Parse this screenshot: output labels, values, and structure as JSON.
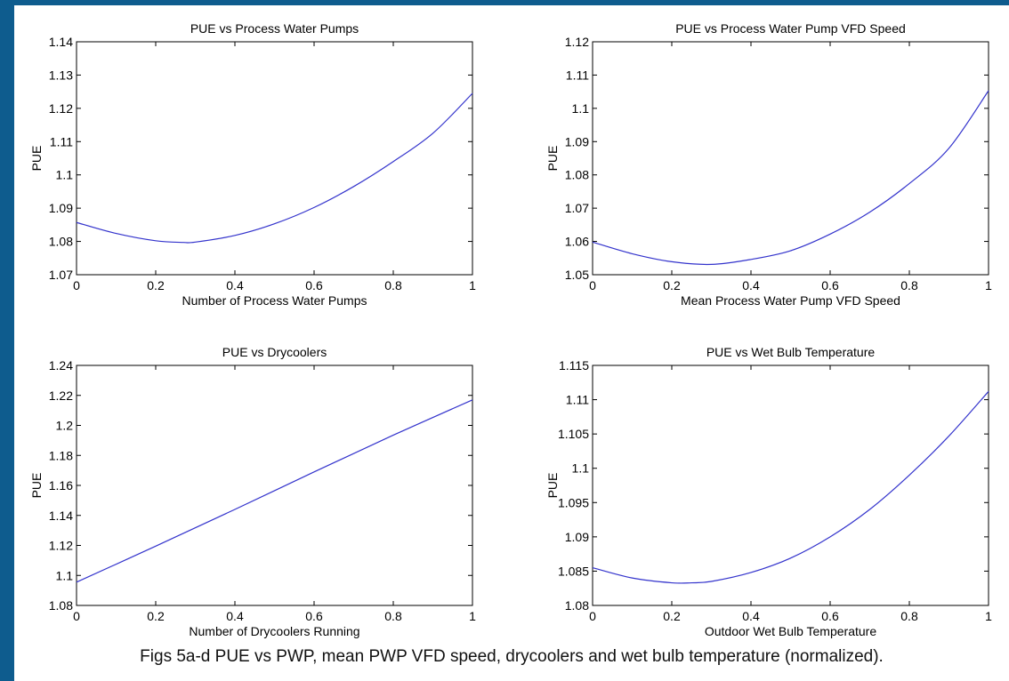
{
  "caption": "Figs 5a-d  PUE vs PWP, mean PWP VFD speed, drycoolers and wet bulb temperature (normalized).",
  "colors": {
    "frame": "#0e5c8e",
    "line": "#3333cc"
  },
  "chart_data": [
    {
      "type": "line",
      "title": "PUE vs Process Water Pumps",
      "xlabel": "Number of Process Water Pumps",
      "ylabel": "PUE",
      "xlim": [
        0,
        1
      ],
      "ylim": [
        1.07,
        1.14
      ],
      "xticks": [
        0,
        0.2,
        0.4,
        0.6,
        0.8,
        1
      ],
      "xtick_labels": [
        "0",
        "0.2",
        "0.4",
        "0.6",
        "0.8",
        "1"
      ],
      "yticks": [
        1.07,
        1.08,
        1.09,
        1.1,
        1.11,
        1.12,
        1.13,
        1.14
      ],
      "ytick_labels": [
        "1.07",
        "1.08",
        "1.09",
        "1.1",
        "1.11",
        "1.12",
        "1.13",
        "1.14"
      ],
      "grid": false,
      "series": [
        {
          "x": [
            0,
            0.1,
            0.2,
            0.27,
            0.3,
            0.4,
            0.5,
            0.6,
            0.7,
            0.8,
            0.9,
            1.0
          ],
          "y": [
            1.0857,
            1.0824,
            1.0802,
            1.0797,
            1.0798,
            1.0818,
            1.0853,
            1.0902,
            1.0965,
            1.104,
            1.1125,
            1.1245
          ]
        }
      ]
    },
    {
      "type": "line",
      "title": "PUE vs Process Water Pump VFD Speed",
      "xlabel": "Mean Process Water Pump VFD Speed",
      "ylabel": "PUE",
      "xlim": [
        0,
        1
      ],
      "ylim": [
        1.05,
        1.12
      ],
      "xticks": [
        0,
        0.2,
        0.4,
        0.6,
        0.8,
        1
      ],
      "xtick_labels": [
        "0",
        "0.2",
        "0.4",
        "0.6",
        "0.8",
        "1"
      ],
      "yticks": [
        1.05,
        1.06,
        1.07,
        1.08,
        1.09,
        1.1,
        1.11,
        1.12
      ],
      "ytick_labels": [
        "1.05",
        "1.06",
        "1.07",
        "1.08",
        "1.09",
        "1.1",
        "1.11",
        "1.12"
      ],
      "grid": false,
      "series": [
        {
          "x": [
            0,
            0.1,
            0.2,
            0.3,
            0.4,
            0.5,
            0.6,
            0.7,
            0.8,
            0.9,
            1.0
          ],
          "y": [
            1.0598,
            1.0563,
            1.0539,
            1.0531,
            1.0546,
            1.0572,
            1.0622,
            1.0688,
            1.0774,
            1.088,
            1.1053
          ]
        }
      ]
    },
    {
      "type": "line",
      "title": "PUE vs Drycoolers",
      "xlabel": "Number of Drycoolers Running",
      "ylabel": "PUE",
      "xlim": [
        0,
        1
      ],
      "ylim": [
        1.08,
        1.24
      ],
      "xticks": [
        0,
        0.2,
        0.4,
        0.6,
        0.8,
        1
      ],
      "xtick_labels": [
        "0",
        "0.2",
        "0.4",
        "0.6",
        "0.8",
        "1"
      ],
      "yticks": [
        1.08,
        1.1,
        1.12,
        1.14,
        1.16,
        1.18,
        1.2,
        1.22,
        1.24
      ],
      "ytick_labels": [
        "1.08",
        "1.1",
        "1.12",
        "1.14",
        "1.16",
        "1.18",
        "1.2",
        "1.22",
        "1.24"
      ],
      "grid": false,
      "series": [
        {
          "x": [
            0,
            0.2,
            0.4,
            0.6,
            0.8,
            1.0
          ],
          "y": [
            1.0955,
            1.1195,
            1.144,
            1.169,
            1.1935,
            1.217
          ]
        }
      ]
    },
    {
      "type": "line",
      "title": "PUE vs Wet Bulb Temperature",
      "xlabel": "Outdoor Wet Bulb Temperature",
      "ylabel": "PUE",
      "xlim": [
        0,
        1
      ],
      "ylim": [
        1.08,
        1.115
      ],
      "xticks": [
        0,
        0.2,
        0.4,
        0.6,
        0.8,
        1
      ],
      "xtick_labels": [
        "0",
        "0.2",
        "0.4",
        "0.6",
        "0.8",
        "1"
      ],
      "yticks": [
        1.08,
        1.085,
        1.09,
        1.095,
        1.1,
        1.105,
        1.11,
        1.115
      ],
      "ytick_labels": [
        "1.08",
        "1.085",
        "1.09",
        "1.095",
        "1.1",
        "1.105",
        "1.11",
        "1.115"
      ],
      "grid": false,
      "series": [
        {
          "x": [
            0,
            0.1,
            0.2,
            0.25,
            0.3,
            0.4,
            0.5,
            0.6,
            0.7,
            0.8,
            0.9,
            1.0
          ],
          "y": [
            1.0855,
            1.084,
            1.0833,
            1.0833,
            1.0835,
            1.0848,
            1.0869,
            1.09,
            1.094,
            1.099,
            1.1047,
            1.1112
          ]
        }
      ]
    }
  ]
}
